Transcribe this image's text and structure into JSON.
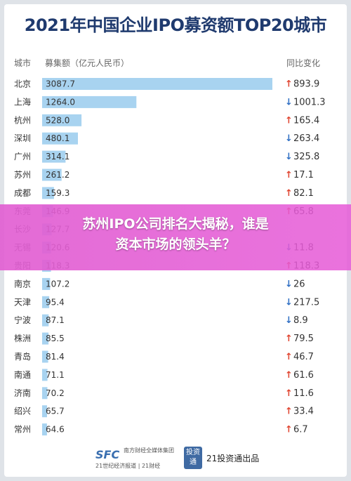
{
  "chart_data": {
    "type": "bar",
    "title": "2021年中国企业IPO募资额TOP20城市",
    "headers": {
      "city": "城市",
      "amount": "募集额（亿元人民币）",
      "change": "同比变化"
    },
    "categories": [
      "北京",
      "上海",
      "杭州",
      "深圳",
      "广州",
      "苏州",
      "成都",
      "东莞",
      "长沙",
      "无锡",
      "贵阳",
      "南京",
      "天津",
      "宁波",
      "株洲",
      "青岛",
      "南通",
      "济南",
      "绍兴",
      "常州"
    ],
    "value_labels": [
      "3087.7",
      "1264.0",
      "528.0",
      "480.1",
      "314.1",
      "261.2",
      "159.3",
      "146.9",
      "127.7",
      "120.6",
      "118.3",
      "107.2",
      "95.4",
      "87.1",
      "85.5",
      "81.4",
      "71.1",
      "70.2",
      "65.7",
      "64.6"
    ],
    "values": [
      3087.7,
      1264.0,
      528.0,
      480.1,
      314.1,
      261.2,
      159.3,
      146.9,
      127.7,
      120.6,
      118.3,
      107.2,
      95.4,
      87.1,
      85.5,
      81.4,
      71.1,
      70.2,
      65.7,
      64.6
    ],
    "change_labels": [
      "893.9",
      "1001.3",
      "165.4",
      "263.4",
      "325.8",
      "17.1",
      "82.1",
      "65.8",
      "",
      "11.8",
      "118.3",
      "26",
      "217.5",
      "8.9",
      "79.5",
      "46.7",
      "61.6",
      "11.6",
      "33.4",
      "6.7"
    ],
    "change_directions": [
      "up",
      "down",
      "up",
      "down",
      "down",
      "up",
      "up",
      "up",
      "",
      "down",
      "up",
      "down",
      "down",
      "down",
      "up",
      "up",
      "up",
      "up",
      "up",
      "up"
    ],
    "colors": {
      "bar": "#a8d3f0",
      "up": "#e0442f",
      "down": "#2f6fc4",
      "title": "#1f3a6e"
    }
  },
  "headline": {
    "line1": "苏州IPO公司排名大揭秘，谁是",
    "line2": "资本市场的领头羊？"
  },
  "footer": {
    "sfc_logo": "SFC",
    "sfc_group": "南方财经全媒体集团",
    "sfc_sub": "21世纪经济报道 | 21财经",
    "badge": "投资通",
    "publisher": "21投资通出品"
  }
}
